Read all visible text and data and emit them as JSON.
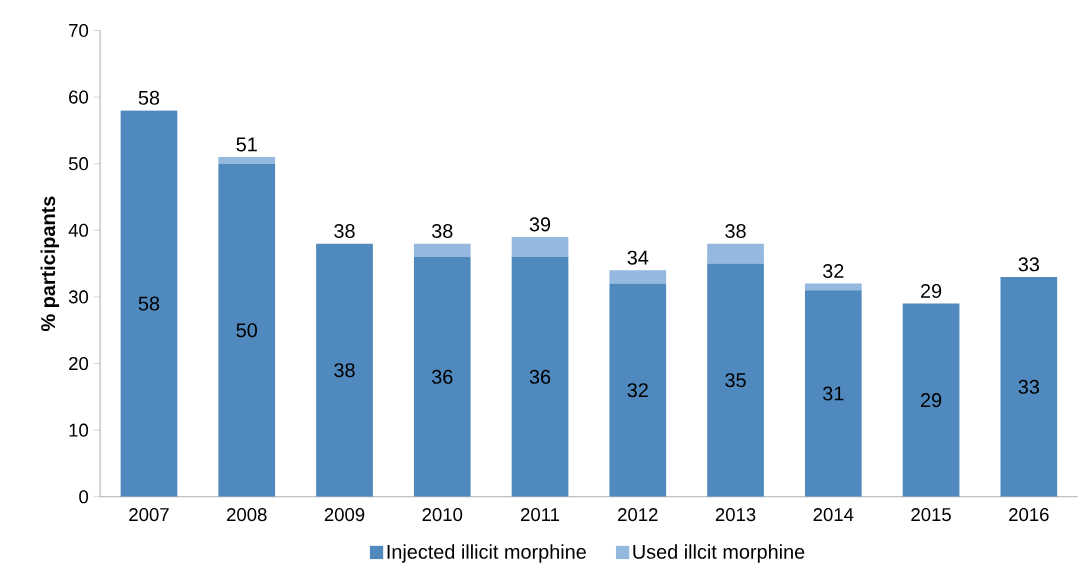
{
  "chart_data": {
    "type": "bar",
    "stacked": true,
    "ylabel": "% participants",
    "categories": [
      "2007",
      "2008",
      "2009",
      "2010",
      "2011",
      "2012",
      "2013",
      "2014",
      "2015",
      "2016"
    ],
    "series": [
      {
        "name": "Injected illicit morphine",
        "color": "#4f89be",
        "values": [
          58,
          50,
          38,
          36,
          36,
          32,
          35,
          31,
          29,
          33
        ],
        "value_labels": [
          "58",
          "50",
          "38",
          "36",
          "36",
          "32",
          "35",
          "31",
          "29",
          "33"
        ]
      },
      {
        "name": "Used illcit morphine",
        "color": "#95b8de",
        "values": [
          0,
          1,
          0,
          2,
          3,
          2,
          3,
          1,
          0,
          0
        ]
      }
    ],
    "totals": [
      "58",
      "51",
      "38",
      "38",
      "39",
      "34",
      "38",
      "32",
      "29",
      "33"
    ],
    "ylim": [
      0,
      70
    ],
    "yticks": [
      0,
      10,
      20,
      30,
      40,
      50,
      60,
      70
    ],
    "legend": "bottom"
  }
}
